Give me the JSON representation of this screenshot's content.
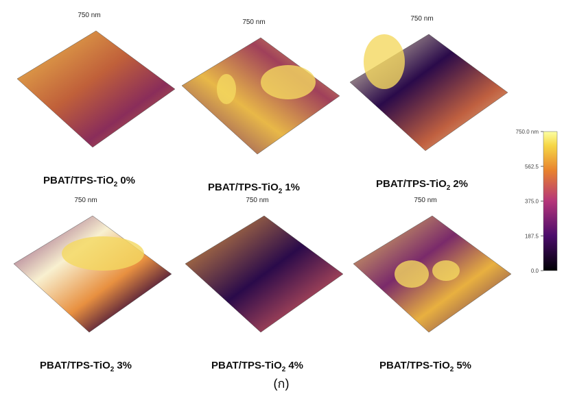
{
  "panels": [
    {
      "scale_label": "750 nm",
      "caption": {
        "text": "PBAT/TPS-TiO",
        "subscript": "2",
        "suffix": "0%"
      }
    },
    {
      "scale_label": "750 nm",
      "caption": {
        "text": "PBAT/TPS-TiO",
        "subscript": "2",
        "suffix": "1%"
      }
    },
    {
      "scale_label": "750 nm",
      "caption": {
        "text": "PBAT/TPS-TiO",
        "subscript": "2",
        "suffix": "2%"
      }
    },
    {
      "scale_label": "750 nm",
      "caption": {
        "text": "PBAT/TPS-TiO",
        "subscript": "2",
        "suffix": "3%"
      }
    },
    {
      "scale_label": "750 nm",
      "caption": {
        "text": "PBAT/TPS-TiO",
        "subscript": "2",
        "suffix": "4%"
      }
    },
    {
      "scale_label": "750 nm",
      "caption": {
        "text": "PBAT/TPS-TiO",
        "subscript": "2",
        "suffix": "5%"
      }
    }
  ],
  "colorbar": {
    "ticks": [
      "750.0 nm",
      "562.5",
      "375.0",
      "187.5",
      "0.0"
    ]
  },
  "figure_label": "(ก)"
}
